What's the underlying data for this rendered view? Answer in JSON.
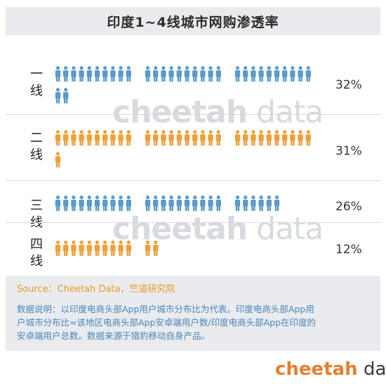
{
  "header": {
    "title": "印度1~4线城市网购渗透率"
  },
  "chart_data": {
    "type": "bar",
    "title": "印度1~4线城市网购渗透率",
    "categories": [
      "一线",
      "二线",
      "三线",
      "四线"
    ],
    "values": [
      32,
      31,
      26,
      12
    ],
    "value_labels": [
      "32%",
      "31%",
      "26%",
      "12%"
    ],
    "unit": "%",
    "series_colors": [
      "#5b9bcb",
      "#eca13a",
      "#5b9bcb",
      "#eca13a"
    ]
  },
  "watermark": {
    "bold": "cheetah",
    "light": "data"
  },
  "footer": {
    "source": "Source：Cheetah Data，竺道研究院",
    "note_lines": [
      "数据说明：以印度电商头部App用户城市分布比为代表。印度电商头部App用",
      "户城市分布比=该地区电商头部App安卓端用户数/印度电商头部App在印度的",
      "安卓端用户总数。数据来源于猎豹移动自身产品。"
    ]
  },
  "brand": {
    "bold": "cheetah",
    "light": " data"
  }
}
